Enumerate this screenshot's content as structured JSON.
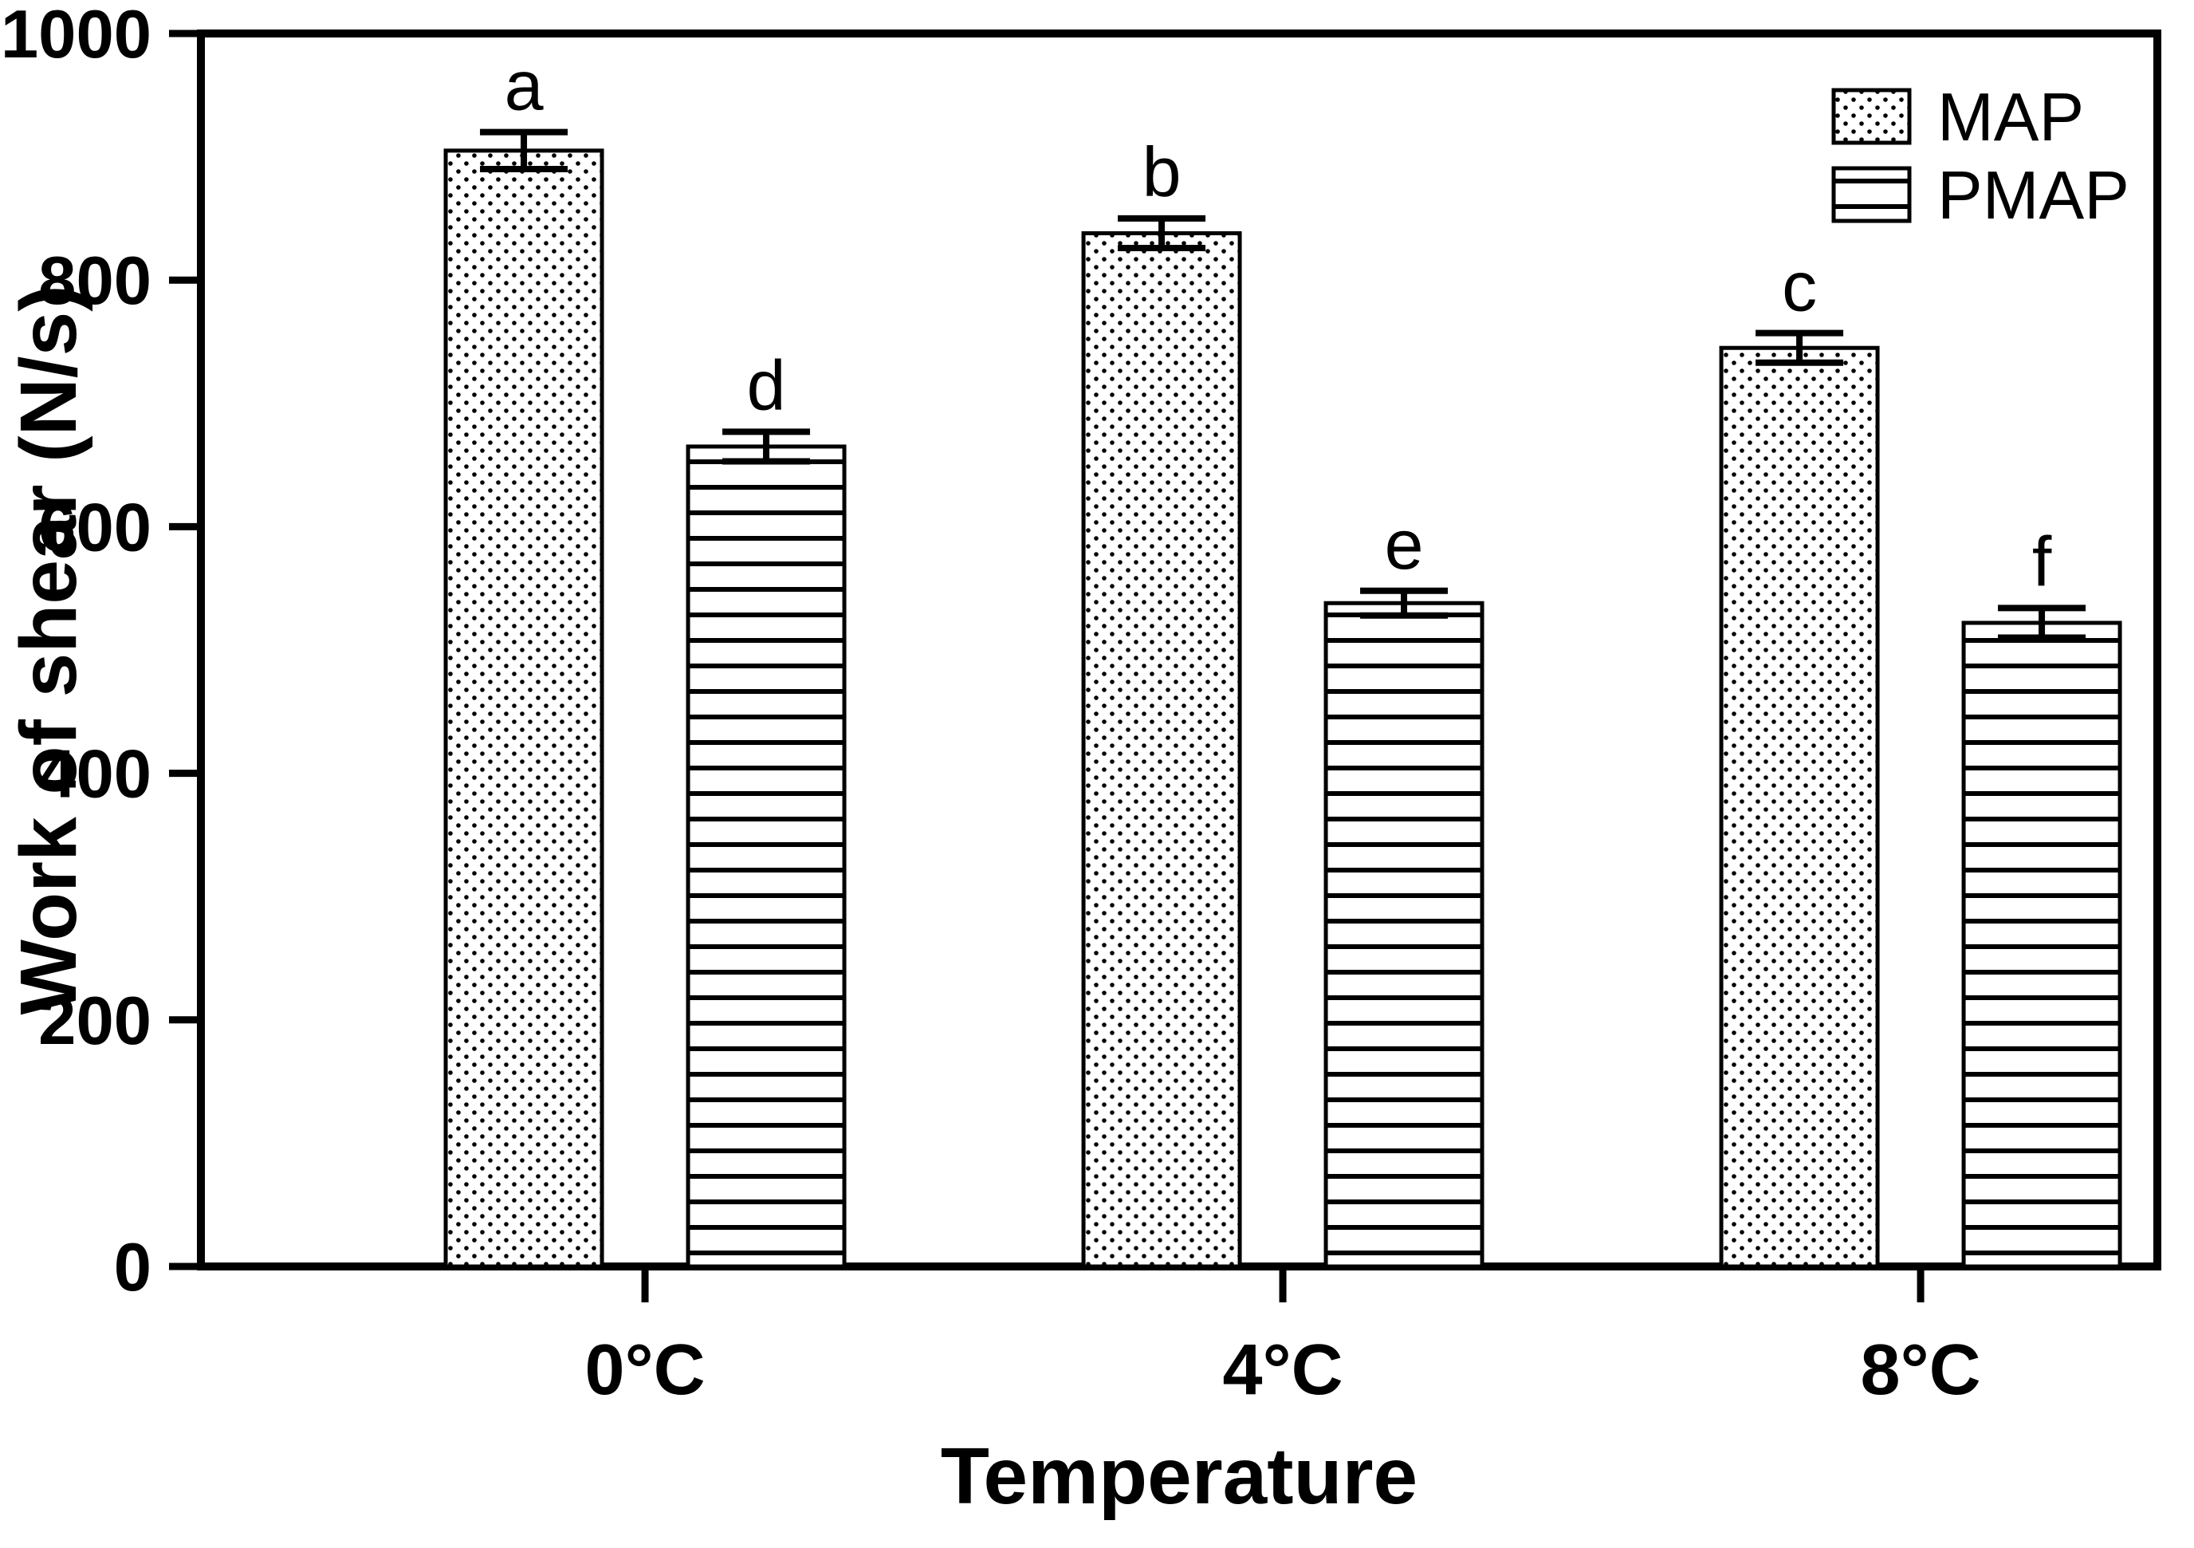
{
  "chart_data": {
    "type": "bar",
    "title": "",
    "xlabel": "Temperature",
    "ylabel": "Work of shear (N/s)",
    "categories": [
      "0°C",
      "4°C",
      "8°C"
    ],
    "series": [
      {
        "name": "MAP",
        "pattern": "dots",
        "values": [
          905,
          838,
          745
        ],
        "errors": [
          15,
          12,
          12
        ],
        "letters": [
          "a",
          "b",
          "c"
        ]
      },
      {
        "name": "PMAP",
        "pattern": "hlines",
        "values": [
          665,
          538,
          522
        ],
        "errors": [
          12,
          10,
          12
        ],
        "letters": [
          "d",
          "e",
          "f"
        ]
      }
    ],
    "ylim": [
      0,
      1000
    ],
    "ytick_step": 200,
    "ytick_labels": [
      "0",
      "200",
      "400",
      "600",
      "800",
      "1000"
    ],
    "legend_position": "top-right",
    "grid": false,
    "colors": {
      "bar_fill": "#ffffff",
      "stroke": "#000000",
      "background": "#ffffff"
    }
  }
}
